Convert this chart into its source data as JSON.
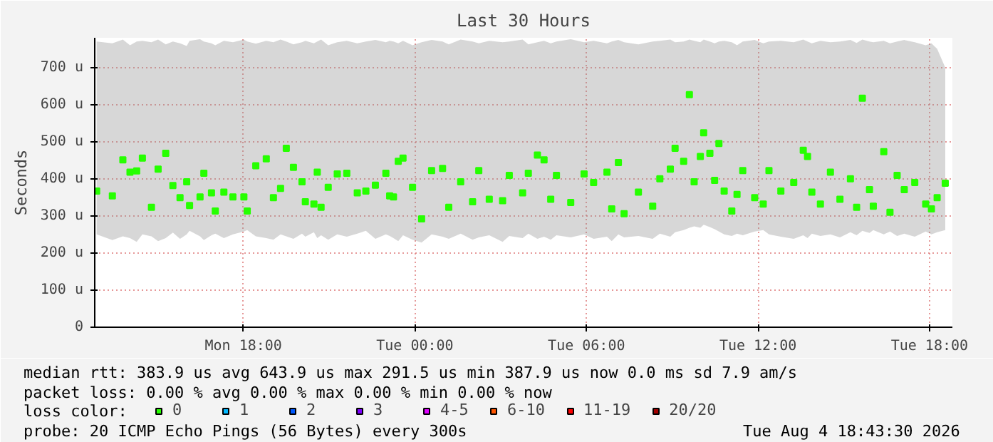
{
  "chart_data": {
    "type": "scatter",
    "title": "Last 30 Hours",
    "ylabel": "Seconds",
    "xlim": [
      "2026-08-03T12:48",
      "2026-08-04T18:48"
    ],
    "xticks": [
      {
        "value": "2026-08-03T18:00",
        "label": "Mon 18:00"
      },
      {
        "value": "2026-08-04T00:00",
        "label": "Tue 00:00"
      },
      {
        "value": "2026-08-04T06:00",
        "label": "Tue 06:00"
      },
      {
        "value": "2026-08-04T12:00",
        "label": "Tue 12:00"
      },
      {
        "value": "2026-08-04T18:00",
        "label": "Tue 18:00"
      }
    ],
    "ylim": [
      0,
      780
    ],
    "yticks": [
      0,
      {
        "value": 100,
        "label": "100 u"
      },
      {
        "value": 200,
        "label": "200 u"
      },
      {
        "value": 300,
        "label": "300 u"
      },
      {
        "value": 400,
        "label": "400 u"
      },
      {
        "value": 500,
        "label": "500 u"
      },
      {
        "value": 600,
        "label": "600 u"
      },
      {
        "value": 700,
        "label": "700 u"
      }
    ],
    "grid": true,
    "marker": "square",
    "legend": "bottom",
    "legend_title": "loss color:",
    "series": [
      {
        "name": "0",
        "color": "#26ff00",
        "x": [
          "2026-08-03T12:52",
          "2026-08-03T13:25",
          "2026-08-03T13:47",
          "2026-08-03T14:02",
          "2026-08-03T14:16",
          "2026-08-03T14:28",
          "2026-08-03T14:47",
          "2026-08-03T15:01",
          "2026-08-03T15:17",
          "2026-08-03T15:32",
          "2026-08-03T15:47",
          "2026-08-03T16:01",
          "2026-08-03T16:07",
          "2026-08-03T16:29",
          "2026-08-03T16:37",
          "2026-08-03T16:53",
          "2026-08-03T17:01",
          "2026-08-03T17:19",
          "2026-08-03T17:38",
          "2026-08-03T18:01",
          "2026-08-03T18:08",
          "2026-08-03T18:26",
          "2026-08-03T18:48",
          "2026-08-03T19:03",
          "2026-08-03T19:18",
          "2026-08-03T19:30",
          "2026-08-03T19:45",
          "2026-08-03T20:03",
          "2026-08-03T20:10",
          "2026-08-03T20:28",
          "2026-08-03T20:35",
          "2026-08-03T20:43",
          "2026-08-03T20:58",
          "2026-08-03T21:17",
          "2026-08-03T21:37",
          "2026-08-03T21:59",
          "2026-08-03T22:17",
          "2026-08-03T22:37",
          "2026-08-03T22:59",
          "2026-08-03T23:07",
          "2026-08-03T23:15",
          "2026-08-03T23:25",
          "2026-08-03T23:35",
          "2026-08-03T23:55",
          "2026-08-04T00:14",
          "2026-08-04T00:35",
          "2026-08-04T00:58",
          "2026-08-04T01:11",
          "2026-08-04T01:36",
          "2026-08-04T02:01",
          "2026-08-04T02:14",
          "2026-08-04T02:36",
          "2026-08-04T03:04",
          "2026-08-04T03:18",
          "2026-08-04T03:46",
          "2026-08-04T03:58",
          "2026-08-04T04:17",
          "2026-08-04T04:31",
          "2026-08-04T04:45",
          "2026-08-04T04:57",
          "2026-08-04T05:27",
          "2026-08-04T05:55",
          "2026-08-04T06:15",
          "2026-08-04T06:43",
          "2026-08-04T06:53",
          "2026-08-04T07:07",
          "2026-08-04T07:19",
          "2026-08-04T07:49",
          "2026-08-04T08:19",
          "2026-08-04T08:34",
          "2026-08-04T08:56",
          "2026-08-04T09:06",
          "2026-08-04T09:24",
          "2026-08-04T09:36",
          "2026-08-04T09:46",
          "2026-08-04T09:59",
          "2026-08-04T10:06",
          "2026-08-04T10:19",
          "2026-08-04T10:29",
          "2026-08-04T10:38",
          "2026-08-04T10:49",
          "2026-08-04T11:05",
          "2026-08-04T11:16",
          "2026-08-04T11:28",
          "2026-08-04T11:53",
          "2026-08-04T12:11",
          "2026-08-04T12:23",
          "2026-08-04T12:48",
          "2026-08-04T13:15",
          "2026-08-04T13:35",
          "2026-08-04T13:44",
          "2026-08-04T13:53",
          "2026-08-04T14:11",
          "2026-08-04T14:32",
          "2026-08-04T14:52",
          "2026-08-04T15:14",
          "2026-08-04T15:27",
          "2026-08-04T15:39",
          "2026-08-04T15:54",
          "2026-08-04T16:02",
          "2026-08-04T16:24",
          "2026-08-04T16:37",
          "2026-08-04T16:52",
          "2026-08-04T17:07",
          "2026-08-04T17:29",
          "2026-08-04T17:52",
          "2026-08-04T18:04",
          "2026-08-04T18:16",
          "2026-08-04T18:33"
        ],
        "values": [
          367,
          354,
          451,
          418,
          421,
          456,
          323,
          426,
          469,
          382,
          349,
          392,
          328,
          351,
          415,
          362,
          313,
          364,
          351,
          351,
          313,
          435,
          454,
          349,
          374,
          482,
          431,
          392,
          338,
          332,
          418,
          323,
          377,
          413,
          415,
          362,
          367,
          383,
          415,
          354,
          351,
          447,
          456,
          377,
          292,
          422,
          428,
          323,
          392,
          338,
          422,
          345,
          341,
          409,
          362,
          415,
          464,
          451,
          345,
          409,
          336,
          413,
          390,
          418,
          319,
          444,
          306,
          364,
          326,
          400,
          426,
          482,
          447,
          627,
          392,
          460,
          524,
          469,
          396,
          495,
          367,
          313,
          358,
          422,
          349,
          332,
          422,
          367,
          390,
          477,
          460,
          364,
          332,
          418,
          345,
          400,
          323,
          617,
          371,
          326,
          473,
          310,
          409,
          371,
          390,
          332,
          319,
          349,
          388
        ],
        "lower": [
          250,
          235,
          245,
          240,
          230,
          250,
          245,
          232,
          240,
          255,
          238,
          250,
          260,
          245,
          235,
          248,
          252,
          240,
          250,
          258,
          262,
          245,
          240,
          236,
          250,
          245,
          238,
          252,
          244,
          256,
          240,
          248,
          236,
          250,
          244,
          252,
          260,
          238,
          250,
          246,
          240,
          232,
          248,
          236,
          228,
          250,
          244,
          238,
          252,
          236,
          242,
          248,
          230,
          246,
          240,
          252,
          238,
          244,
          236,
          248,
          242,
          250,
          238,
          244,
          232,
          250,
          242,
          246,
          238,
          252,
          244,
          256,
          262,
          268,
          272,
          268,
          276,
          270,
          264,
          258,
          250,
          246,
          252,
          248,
          258,
          262,
          250,
          244,
          238,
          248,
          240,
          252,
          246,
          250,
          242,
          256,
          248,
          260,
          254,
          262,
          250,
          258,
          246,
          252,
          244,
          258,
          250,
          256,
          262
        ],
        "upper": [
          770,
          765,
          775,
          760,
          770,
          772,
          768,
          775,
          762,
          770,
          765,
          758,
          772,
          776,
          770,
          765,
          760,
          772,
          768,
          775,
          770,
          764,
          772,
          768,
          775,
          770,
          762,
          768,
          772,
          765,
          770,
          775,
          760,
          768,
          772,
          765,
          770,
          774,
          768,
          772,
          770,
          765,
          772,
          760,
          768,
          774,
          770,
          762,
          775,
          770,
          765,
          772,
          768,
          770,
          775,
          762,
          768,
          772,
          765,
          770,
          776,
          768,
          772,
          765,
          770,
          774,
          768,
          762,
          770,
          772,
          775,
          768,
          770,
          775,
          772,
          768,
          775,
          770,
          765,
          770,
          772,
          768,
          760,
          770,
          774,
          765,
          770,
          772,
          768,
          775,
          770,
          765,
          772,
          768,
          770,
          774,
          766,
          775,
          770,
          768,
          772,
          765,
          770,
          774,
          768,
          760,
          765,
          750,
          700
        ]
      },
      {
        "name": "1",
        "color": "#00b8ff"
      },
      {
        "name": "2",
        "color": "#0059ff"
      },
      {
        "name": "3",
        "color": "#7e00ff"
      },
      {
        "name": "4-5",
        "color": "#dd00ff"
      },
      {
        "name": "6-10",
        "color": "#ff5500"
      },
      {
        "name": "11-19",
        "color": "#ff0000"
      },
      {
        "name": "20/20",
        "color": "#a10000"
      }
    ],
    "annotations": [
      "median rtt:  383.9 us avg  643.9 us max  291.5 us min  387.9 us now  0.0 ms sd  7.9   am/s",
      "packet loss: 0.00 % avg  0.00 % max  0.00 % min  0.00 % now",
      "probe:       20 ICMP Echo Pings (56 Bytes) every 300s",
      "Tue Aug  4 18:43:30 2026"
    ]
  }
}
